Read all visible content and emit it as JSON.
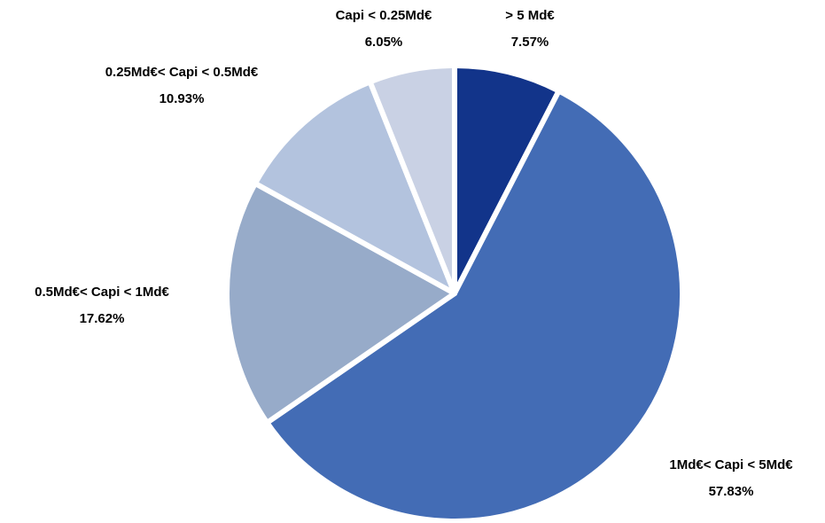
{
  "chart_data": {
    "type": "pie",
    "categories": [
      "> 5 Md€",
      "1Md€< Capi < 5Md€",
      "0.5Md€< Capi < 1Md€",
      "0.25Md€< Capi < 0.5Md€",
      "Capi < 0.25Md€"
    ],
    "values": [
      7.57,
      57.83,
      17.62,
      10.93,
      6.05
    ],
    "value_labels": [
      "7.57%",
      "57.83%",
      "17.62%",
      "10.93%",
      "6.05%"
    ],
    "colors": [
      "#12348a",
      "#436cb5",
      "#97abc9",
      "#b3c3de",
      "#c9d1e4"
    ]
  }
}
